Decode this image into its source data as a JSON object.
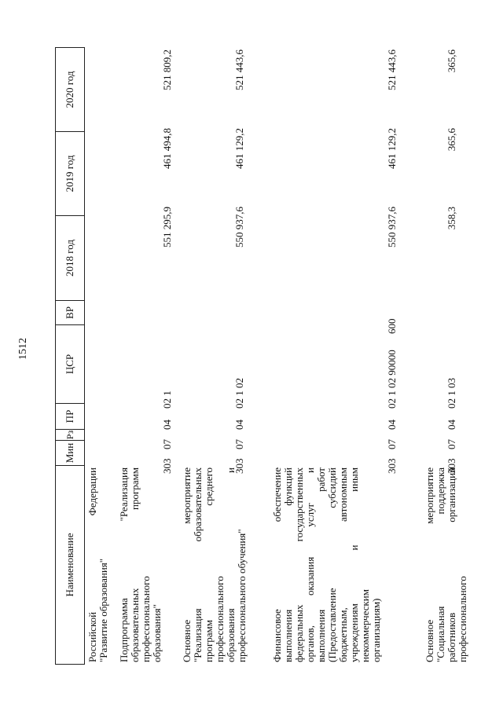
{
  "page_number": "1512",
  "header": {
    "name": "Наименование",
    "min": "Мин",
    "rz": "Рз",
    "pr": "ПР",
    "csr": "ЦСР",
    "vr": "ВР",
    "y2018": "2018 год",
    "y2019": "2019 год",
    "y2020": "2020 год"
  },
  "rows": [
    {
      "lines": [
        "Российской Федерации",
        "\"Развитие образования\""
      ],
      "min": "",
      "rz": "",
      "pr": "",
      "csr": "",
      "vr": "",
      "y2018": "",
      "y2019": "",
      "y2020": ""
    },
    {
      "lines": [
        "Подпрограмма \"Реализация",
        "образовательных программ",
        "профессионального",
        "образования\""
      ],
      "min": "303",
      "rz": "07",
      "pr": "04",
      "csr": "02 1",
      "vr": "",
      "y2018": "551 295,9",
      "y2019": "461 494,8",
      "y2020": "521 809,2"
    },
    {
      "lines": [
        "Основное мероприятие",
        "\"Реализация образовательных",
        "программ среднего",
        "профессионального",
        "образования и",
        "профессионального обучения\""
      ],
      "min": "303",
      "rz": "07",
      "pr": "04",
      "csr": "02 1 02",
      "vr": "",
      "y2018": "550 937,6",
      "y2019": "461 129,2",
      "y2020": "521 443,6"
    },
    {
      "lines": [
        "Финансовое обеспечение",
        "выполнения функций",
        "федеральных государственных",
        "органов, оказания услуг и",
        "выполнения работ",
        "(Предоставление субсидий",
        "бюджетным, автономным",
        "учреждениям и иным",
        "некоммерческим",
        "организациям)"
      ],
      "min": "303",
      "rz": "07",
      "pr": "04",
      "csr": "02 1 02 90000",
      "vr": "600",
      "y2018": "550 937,6",
      "y2019": "461 129,2",
      "y2020": "521 443,6"
    },
    {
      "lines": [
        "Основное мероприятие",
        "\"Социальная поддержка",
        "работников организаций",
        "профессионального"
      ],
      "min": "303",
      "rz": "07",
      "pr": "04",
      "csr": "02 1 03",
      "vr": "",
      "y2018": "358,3",
      "y2019": "365,6",
      "y2020": "365,6"
    }
  ]
}
